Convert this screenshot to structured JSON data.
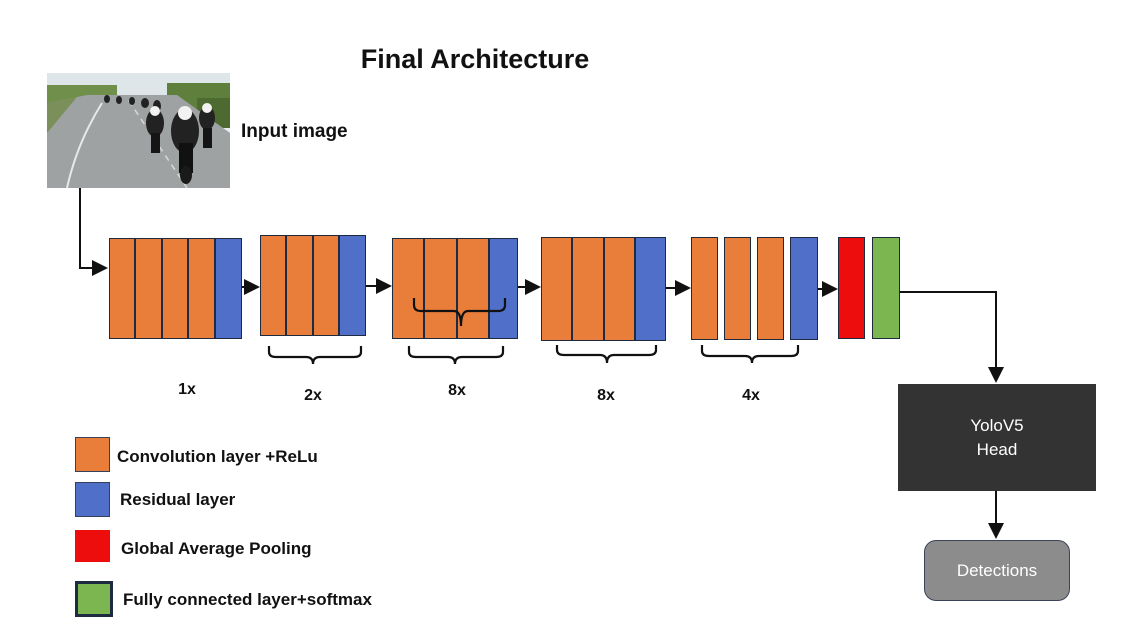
{
  "title": "Final Architecture",
  "input": {
    "label": "Input image"
  },
  "blocks": [
    {
      "multiplier": "1x"
    },
    {
      "multiplier": "2x"
    },
    {
      "multiplier": "8x"
    },
    {
      "multiplier": "8x"
    },
    {
      "multiplier": "4x"
    }
  ],
  "head": {
    "line1": "YoloV5",
    "line2": "Head"
  },
  "output": {
    "label": "Detections"
  },
  "legend": [
    {
      "label": "Convolution layer +ReLu",
      "color": "#e97e3b"
    },
    {
      "label": "Residual layer",
      "color": "#4f6fc8"
    },
    {
      "label": "Global Average Pooling",
      "color": "#ee0d0d"
    },
    {
      "label": "Fully connected layer+softmax",
      "color": "#7cb650"
    }
  ]
}
